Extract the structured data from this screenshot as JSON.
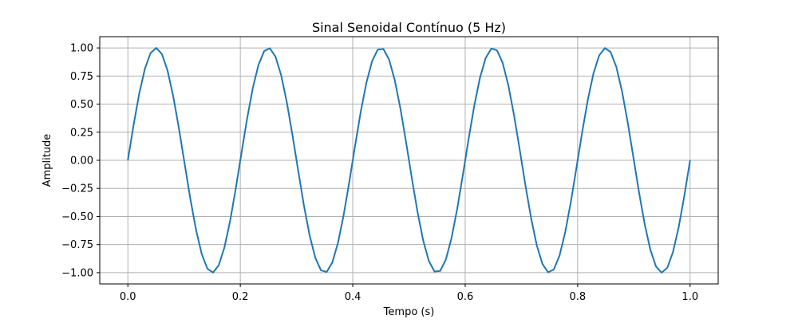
{
  "chart_data": {
    "type": "line",
    "title": "Sinal Senoidal Contínuo (5 Hz)",
    "xlabel": "Tempo (s)",
    "ylabel": "Amplitude",
    "xlim": [
      -0.05,
      1.05
    ],
    "ylim": [
      -1.1,
      1.1
    ],
    "xticks": [
      0.0,
      0.2,
      0.4,
      0.6,
      0.8,
      1.0
    ],
    "xtick_labels": [
      "0.0",
      "0.2",
      "0.4",
      "0.6",
      "0.8",
      "1.0"
    ],
    "yticks": [
      -1.0,
      -0.75,
      -0.5,
      -0.25,
      0.0,
      0.25,
      0.5,
      0.75,
      1.0
    ],
    "ytick_labels": [
      "−1.00",
      "−0.75",
      "−0.50",
      "−0.25",
      "0.00",
      "0.25",
      "0.50",
      "0.75",
      "1.00"
    ],
    "grid": true,
    "series": [
      {
        "color": "#1f77b4",
        "frequency_hz": 5,
        "amplitude": 1.0,
        "t_start": 0.0,
        "t_end": 1.0,
        "num_points": 100
      }
    ]
  }
}
